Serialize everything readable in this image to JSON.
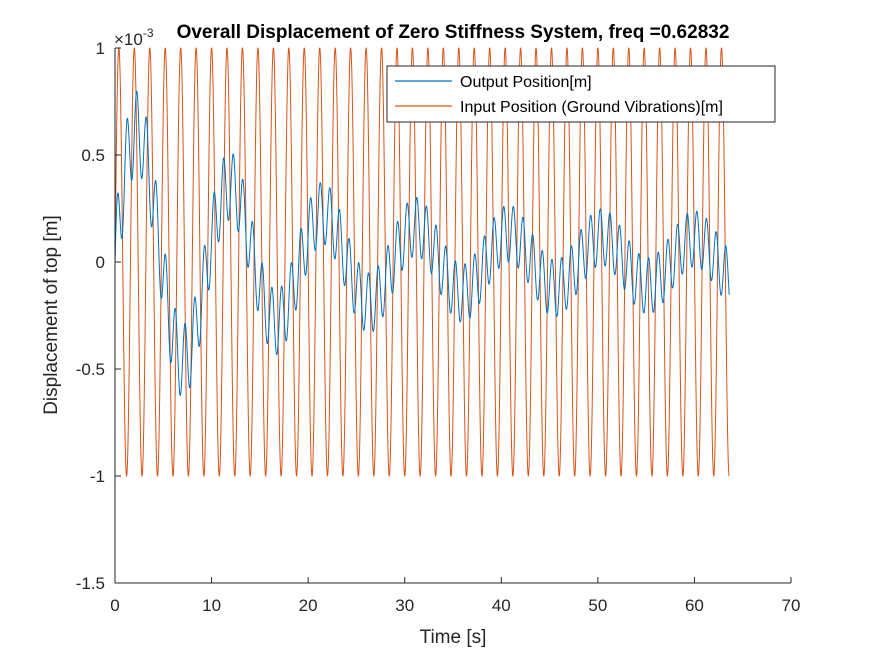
{
  "chart_data": {
    "type": "line",
    "title": "Overall Displacement of Zero Stiffness System, freq =0.62832",
    "xlabel": "Time [s]",
    "ylabel": "Displacement of top [m]",
    "y_exponent_label": "×10",
    "y_exponent_power": "-3",
    "xlim": [
      0,
      70
    ],
    "ylim": [
      -1.5,
      1
    ],
    "xticks": [
      0,
      10,
      20,
      30,
      40,
      50,
      60,
      70
    ],
    "xtick_labels": [
      "0",
      "10",
      "20",
      "30",
      "40",
      "50",
      "60",
      "70"
    ],
    "yticks": [
      -1.5,
      -1,
      -0.5,
      0,
      0.5,
      1
    ],
    "ytick_labels": [
      "-1.5",
      "-1",
      "-0.5",
      "0",
      "0.5",
      "1"
    ],
    "grid": false,
    "legend_position": "top-right",
    "series": [
      {
        "name": "Output Position[m]",
        "color": "#0072bd",
        "t_end": 63.6,
        "components": {
          "fast_period": 1.0,
          "fast_amplitude_start": 0.2,
          "fast_amplitude_end": 0.13,
          "slow_period": 9.6,
          "slow_amplitude_start": 0.7,
          "slow_amplitude_end": 0.1,
          "slow_decay_time": 14
        }
      },
      {
        "name": "Input Position (Ground Vibrations)[m]",
        "color": "#d95319",
        "t_end": 63.6,
        "amplitude": 1.0,
        "period": 1.6
      }
    ]
  }
}
